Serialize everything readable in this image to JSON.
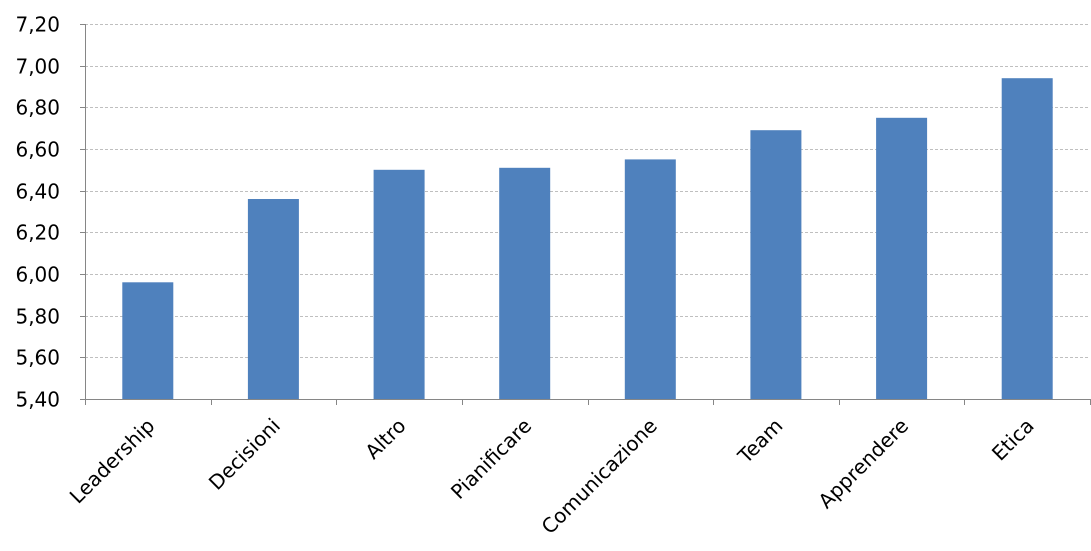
{
  "chart_data": {
    "type": "bar",
    "title": "",
    "xlabel": "",
    "ylabel": "",
    "categories": [
      "Leadership",
      "Decisioni",
      "Altro",
      "Pianificare",
      "Comunicazione",
      "Team",
      "Apprendere",
      "Etica"
    ],
    "values": [
      5.96,
      6.36,
      6.5,
      6.51,
      6.55,
      6.69,
      6.75,
      6.94
    ],
    "ylim": [
      5.4,
      7.2
    ],
    "yticks": [
      5.4,
      5.6,
      5.8,
      6.0,
      6.2,
      6.4,
      6.6,
      6.8,
      7.0,
      7.2
    ],
    "ytick_labels": [
      "5,40",
      "5,60",
      "5,80",
      "6,00",
      "6,20",
      "6,40",
      "6,60",
      "6,80",
      "7,00",
      "7,20"
    ],
    "grid": true,
    "legend": "none",
    "colors": {
      "bar": "#4F81BD",
      "grid": "#BFBFBF",
      "axis": "#868686",
      "text": "#000000"
    }
  }
}
